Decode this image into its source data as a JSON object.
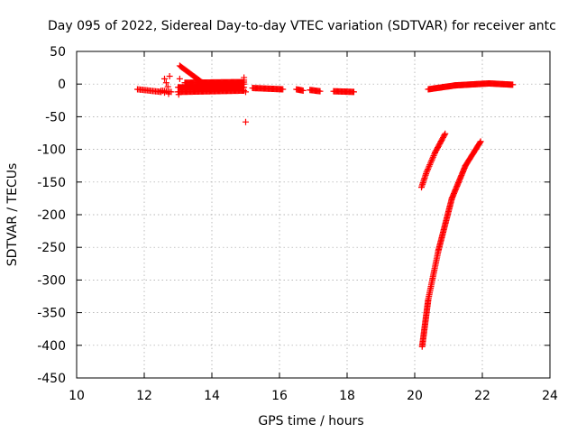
{
  "chart_data": {
    "type": "scatter",
    "title": "Day 095 of 2022, Sidereal Day-to-day VTEC variation (SDTVAR) for receiver antc",
    "xlabel": "GPS time / hours",
    "ylabel": "SDTVAR / TECUs",
    "xlim": [
      10,
      24
    ],
    "ylim": [
      -450,
      50
    ],
    "xticks": [
      10,
      12,
      14,
      16,
      18,
      20,
      22,
      24
    ],
    "yticks": [
      50,
      0,
      -50,
      -100,
      -150,
      -200,
      -250,
      -300,
      -350,
      -400,
      -450
    ],
    "grid": true,
    "marker": "+",
    "series": [
      {
        "name": "SDTVAR",
        "color": "#ff0000",
        "segments": [
          {
            "x0": 11.8,
            "x1": 12.5,
            "y0": -8,
            "y1": -12,
            "step": 0.04
          },
          {
            "x0": 12.5,
            "x1": 12.8,
            "y0": -10,
            "y1": -12,
            "step": 0.05
          },
          {
            "x0": 13.0,
            "x1": 14.95,
            "y0": -5,
            "y1": -5,
            "step": 0.02
          },
          {
            "x0": 13.0,
            "x1": 14.95,
            "y0": -12,
            "y1": -10,
            "step": 0.03
          },
          {
            "x0": 13.05,
            "x1": 13.7,
            "y0": 28,
            "y1": 3,
            "step": 0.03
          },
          {
            "x0": 13.2,
            "x1": 14.95,
            "y0": 2,
            "y1": 3,
            "step": 0.025
          },
          {
            "x0": 13.6,
            "x1": 14.95,
            "y0": -1,
            "y1": 0,
            "step": 0.025
          },
          {
            "x0": 15.2,
            "x1": 16.1,
            "y0": -6,
            "y1": -8,
            "step": 0.03
          },
          {
            "x0": 16.5,
            "x1": 16.7,
            "y0": -8,
            "y1": -10,
            "step": 0.03
          },
          {
            "x0": 16.9,
            "x1": 17.2,
            "y0": -9,
            "y1": -11,
            "step": 0.03
          },
          {
            "x0": 17.6,
            "x1": 18.2,
            "y0": -11,
            "y1": -12,
            "step": 0.03
          },
          {
            "x0": 20.4,
            "x1": 21.2,
            "y0": -8,
            "y1": -2,
            "step": 0.025
          },
          {
            "x0": 21.2,
            "x1": 22.2,
            "y0": -2,
            "y1": 1,
            "step": 0.025
          },
          {
            "x0": 22.2,
            "x1": 22.9,
            "y0": 1,
            "y1": -1,
            "step": 0.025
          },
          {
            "x0": 20.2,
            "x1": 20.35,
            "y0": -158,
            "y1": -135,
            "step": 0.015
          },
          {
            "x0": 20.35,
            "x1": 20.6,
            "y0": -135,
            "y1": -105,
            "step": 0.02
          },
          {
            "x0": 20.6,
            "x1": 20.9,
            "y0": -105,
            "y1": -76,
            "step": 0.02
          },
          {
            "x0": 20.22,
            "x1": 20.4,
            "y0": -402,
            "y1": -330,
            "step": 0.005
          },
          {
            "x0": 20.4,
            "x1": 20.7,
            "y0": -330,
            "y1": -255,
            "step": 0.01
          },
          {
            "x0": 20.7,
            "x1": 21.1,
            "y0": -255,
            "y1": -175,
            "step": 0.01
          },
          {
            "x0": 21.1,
            "x1": 21.5,
            "y0": -175,
            "y1": -125,
            "step": 0.015
          },
          {
            "x0": 21.5,
            "x1": 21.95,
            "y0": -125,
            "y1": -88,
            "step": 0.02
          }
        ],
        "points": [
          {
            "x": 15.0,
            "y": -58
          },
          {
            "x": 12.6,
            "y": 8
          },
          {
            "x": 12.65,
            "y": 2
          },
          {
            "x": 12.7,
            "y": -4
          },
          {
            "x": 12.75,
            "y": 12
          },
          {
            "x": 12.72,
            "y": -15
          },
          {
            "x": 12.6,
            "y": -13
          },
          {
            "x": 14.95,
            "y": 10
          },
          {
            "x": 14.95,
            "y": 6
          },
          {
            "x": 15.0,
            "y": -12
          },
          {
            "x": 13.02,
            "y": -16
          },
          {
            "x": 13.05,
            "y": 8
          }
        ]
      }
    ]
  }
}
